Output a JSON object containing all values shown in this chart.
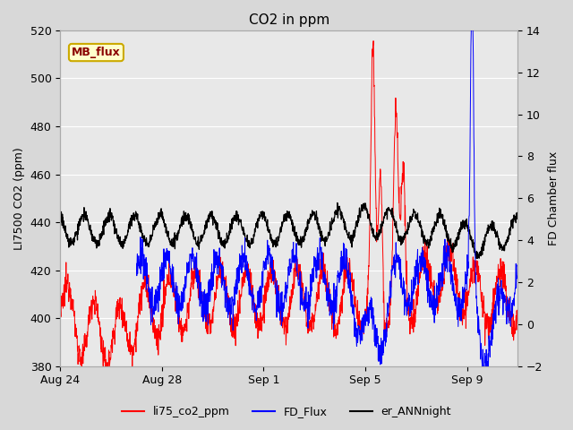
{
  "title": "CO2 in ppm",
  "ylabel_left": "LI7500 CO2 (ppm)",
  "ylabel_right": "FD Chamber flux",
  "ylim_left": [
    380,
    520
  ],
  "ylim_right": [
    -2,
    14
  ],
  "yticks_left": [
    380,
    400,
    420,
    440,
    460,
    480,
    500,
    520
  ],
  "yticks_right": [
    -2,
    0,
    2,
    4,
    6,
    8,
    10,
    12,
    14
  ],
  "background_color": "#d8d8d8",
  "plot_bg_color": "#e8e8e8",
  "grid_color": "#ffffff",
  "mb_flux_box_color": "#ffffcc",
  "mb_flux_text_color": "#8b0000",
  "mb_flux_border_color": "#ccaa00",
  "line_red": "#ff0000",
  "line_blue": "#0000ff",
  "line_black": "#000000",
  "legend_labels": [
    "li75_co2_ppm",
    "FD_Flux",
    "er_ANNnight"
  ],
  "xtick_labels": [
    "Aug 24",
    "Aug 28",
    "Sep 1",
    "Sep 5",
    "Sep 9"
  ],
  "xtick_positions_days": [
    0,
    4,
    8,
    12,
    16
  ],
  "n_days": 18,
  "pts_per_day": 96
}
